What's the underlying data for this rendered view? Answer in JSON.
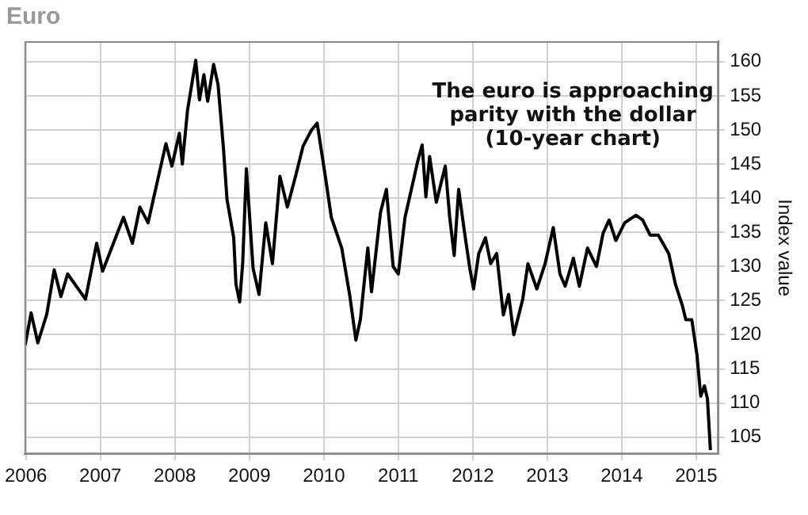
{
  "chart_data": {
    "type": "line",
    "title": "Euro",
    "ylabel": "Index value",
    "annotations": [
      "The euro is approaching\nparity with the dollar\n(10-year chart)"
    ],
    "x": [
      2005.99,
      2006.07,
      2006.16,
      2006.28,
      2006.38,
      2006.47,
      2006.56,
      2006.8,
      2006.95,
      2007.03,
      2007.31,
      2007.43,
      2007.53,
      2007.64,
      2007.78,
      2007.88,
      2007.96,
      2008.06,
      2008.1,
      2008.17,
      2008.28,
      2008.33,
      2008.39,
      2008.44,
      2008.52,
      2008.58,
      2008.65,
      2008.7,
      2008.79,
      2008.82,
      2008.87,
      2008.91,
      2008.96,
      2009.05,
      2009.13,
      2009.22,
      2009.31,
      2009.41,
      2009.51,
      2009.62,
      2009.72,
      2009.83,
      2009.91,
      2010.02,
      2010.1,
      2010.24,
      2010.35,
      2010.43,
      2010.49,
      2010.59,
      2010.64,
      2010.76,
      2010.84,
      2010.93,
      2011.0,
      2011.09,
      2011.19,
      2011.26,
      2011.32,
      2011.37,
      2011.42,
      2011.51,
      2011.63,
      2011.69,
      2011.75,
      2011.81,
      2011.89,
      2011.96,
      2012.01,
      2012.08,
      2012.17,
      2012.24,
      2012.32,
      2012.41,
      2012.48,
      2012.55,
      2012.67,
      2012.74,
      2012.86,
      2012.97,
      2013.08,
      2013.17,
      2013.24,
      2013.35,
      2013.43,
      2013.54,
      2013.66,
      2013.75,
      2013.83,
      2013.92,
      2014.04,
      2014.19,
      2014.28,
      2014.38,
      2014.49,
      2014.63,
      2014.72,
      2014.81,
      2014.86,
      2014.94,
      2015.01,
      2015.06,
      2015.11,
      2015.15,
      2015.19
    ],
    "values": [
      118.5,
      123.2,
      118.8,
      123,
      129.5,
      125.6,
      128.9,
      125.2,
      133.4,
      129.3,
      137.2,
      133.4,
      138.7,
      136.4,
      143.2,
      148,
      144.7,
      149.5,
      145,
      152.9,
      160.2,
      154.4,
      158.1,
      154.2,
      159.6,
      156.6,
      147.6,
      139.8,
      134.2,
      127.4,
      124.8,
      130.4,
      144.3,
      129.7,
      125.9,
      136.4,
      130.4,
      143.2,
      138.7,
      143.2,
      147.6,
      149.9,
      151,
      143.2,
      137.2,
      132.7,
      125.6,
      119.2,
      122.2,
      132.7,
      126.3,
      137.9,
      141.3,
      130,
      128.9,
      137.2,
      142,
      145.4,
      147.8,
      140.2,
      146.1,
      139.4,
      144.7,
      137.2,
      131.6,
      141.3,
      134.9,
      129.7,
      126.7,
      131.9,
      134.2,
      130.4,
      131.9,
      122.9,
      125.9,
      120,
      125.2,
      130.4,
      126.7,
      130.4,
      135.7,
      128.9,
      127.1,
      131.2,
      127.1,
      132.7,
      130,
      134.9,
      136.8,
      133.8,
      136.4,
      137.5,
      136.8,
      134.6,
      134.6,
      131.9,
      127.4,
      124.4,
      122.2,
      122.2,
      117,
      111,
      112.5,
      110.6,
      103.1
    ],
    "color": "#000000",
    "xlim": [
      2005.98,
      2015.3
    ],
    "xticks": [
      2006,
      2007,
      2008,
      2009,
      2010,
      2011,
      2012,
      2013,
      2014,
      2015
    ],
    "ylim": [
      102.5,
      163
    ],
    "yticks": [
      105,
      110,
      115,
      120,
      125,
      130,
      135,
      140,
      145,
      150,
      155,
      160
    ],
    "grid": true
  }
}
